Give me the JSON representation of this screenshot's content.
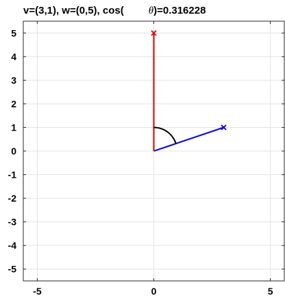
{
  "chart_data": {
    "type": "line",
    "title": {
      "prefix": "v=(3,1), w=(0,5), cos(",
      "symbol": "θ",
      "suffix": ")=0.316228"
    },
    "xlabel": "",
    "ylabel": "",
    "xlim": [
      -5.6,
      5.6
    ],
    "ylim": [
      -5.5,
      5.5
    ],
    "x_ticks": [
      -5,
      0,
      5
    ],
    "x_tick_labels": [
      "-5",
      "0",
      "5"
    ],
    "y_ticks": [
      5,
      4,
      3,
      2,
      1,
      0,
      -1,
      -2,
      -3,
      -4,
      -5
    ],
    "y_tick_labels": [
      "5",
      "4",
      "3",
      "2",
      "1",
      "0",
      "-1",
      "-2",
      "-3",
      "-4",
      "-5"
    ],
    "grid": true,
    "series": [
      {
        "name": "v",
        "color": "#1010d0",
        "x": [
          0,
          3
        ],
        "y": [
          0,
          1
        ],
        "marker": "x"
      },
      {
        "name": "w",
        "color": "#e01010",
        "x": [
          0,
          0
        ],
        "y": [
          0,
          5
        ],
        "marker": "x"
      }
    ],
    "angle_arc": {
      "color": "#000000",
      "radius": 1,
      "from_deg": 18.43,
      "to_deg": 90
    }
  }
}
